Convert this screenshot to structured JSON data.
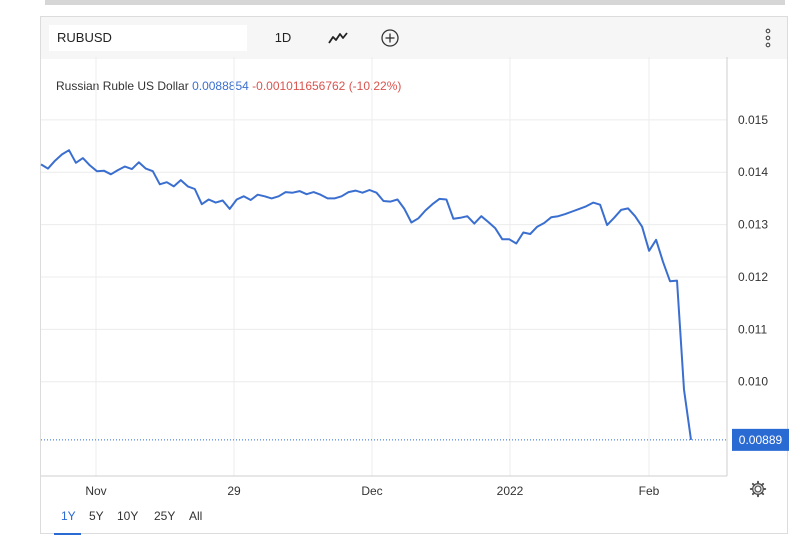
{
  "header": {
    "symbol": "RUBUSD",
    "interval_label": "1D",
    "chart_type_icon": "line-chart-icon",
    "add_icon": "plus-circle-icon",
    "more_icon": "vertical-dots-icon"
  },
  "legend": {
    "name": "Russian Ruble US Dollar",
    "value": "0.0088854",
    "change": "-0.001011656762 (-10.22%)"
  },
  "last_price_label": "0.00889",
  "range_buttons": [
    "1Y",
    "5Y",
    "10Y",
    "25Y",
    "All"
  ],
  "active_range": "1Y",
  "settings_icon": "gear-icon",
  "colors": {
    "line": "#3b6fcf",
    "price_tag": "#2a6ad3",
    "change_negative": "#d9534f"
  },
  "chart_data": {
    "type": "line",
    "title": "Russian Ruble US Dollar",
    "xlabel": "",
    "ylabel": "",
    "x_tick_labels": [
      "Nov",
      "29",
      "Dec",
      "2022",
      "Feb"
    ],
    "y_tick_labels": [
      "0.015",
      "0.014",
      "0.013",
      "0.012",
      "0.011",
      "0.010"
    ],
    "ylim": [
      0.0082,
      0.0162
    ],
    "grid": true,
    "series": [
      {
        "values": [
          0.01415,
          0.01407,
          0.01422,
          0.01434,
          0.01442,
          0.01418,
          0.01427,
          0.01413,
          0.01402,
          0.01403,
          0.01396,
          0.01404,
          0.01411,
          0.01406,
          0.01419,
          0.01407,
          0.01402,
          0.01377,
          0.01381,
          0.01373,
          0.01385,
          0.01373,
          0.01368,
          0.01339,
          0.01348,
          0.01342,
          0.01346,
          0.0133,
          0.01348,
          0.01354,
          0.01347,
          0.01357,
          0.01354,
          0.0135,
          0.01354,
          0.01362,
          0.01361,
          0.01364,
          0.01358,
          0.01362,
          0.01357,
          0.0135,
          0.0135,
          0.01354,
          0.01362,
          0.01365,
          0.01361,
          0.01366,
          0.01361,
          0.01345,
          0.01344,
          0.01348,
          0.0133,
          0.01304,
          0.01312,
          0.01327,
          0.01339,
          0.01349,
          0.01348,
          0.01311,
          0.01313,
          0.01316,
          0.01302,
          0.01316,
          0.01305,
          0.01293,
          0.01272,
          0.01272,
          0.01264,
          0.01285,
          0.01282,
          0.01296,
          0.01303,
          0.01314,
          0.01316,
          0.0132,
          0.01325,
          0.0133,
          0.01335,
          0.01342,
          0.01338,
          0.01299,
          0.01313,
          0.01328,
          0.01331,
          0.01316,
          0.01296,
          0.0125,
          0.01271,
          0.01229,
          0.01192,
          0.01193,
          0.00985,
          0.00889
        ]
      }
    ]
  }
}
